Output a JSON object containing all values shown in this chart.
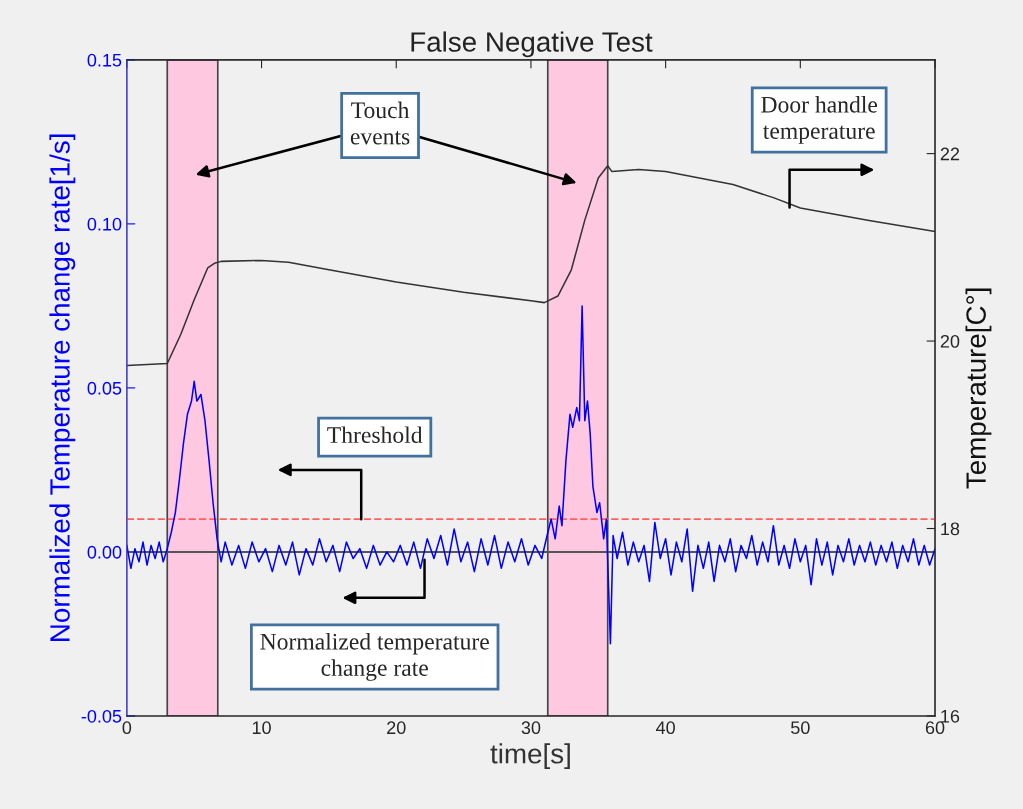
{
  "chart_data": {
    "type": "line",
    "title": "False Negative Test",
    "xlabel": "time[s]",
    "ylabel": "Normalized Temperature change rate[1/s]",
    "y2label": "Temperature[C°]",
    "xlim": [
      0,
      60
    ],
    "xticks": [
      0,
      10,
      20,
      30,
      40,
      50,
      60
    ],
    "ylim": [
      -0.05,
      0.15
    ],
    "yticks": [
      {
        "value": -0.05,
        "label": "-0.05"
      },
      {
        "value": 0,
        "label": "0.00"
      },
      {
        "value": 0.05,
        "label": "0.05"
      },
      {
        "value": 0.1,
        "label": "0.10"
      },
      {
        "value": 0.15,
        "label": "0.15"
      }
    ],
    "y2lim": [
      16,
      23
    ],
    "y2ticks": [
      16,
      18,
      20,
      22
    ],
    "series": [
      {
        "color": "#0000ff",
        "axis": "y",
        "x": [
          0,
          0.3,
          0.6,
          0.9,
          1.2,
          1.5,
          1.8,
          2.1,
          2.4,
          2.7,
          3.0,
          3.3,
          3.6,
          3.9,
          4.2,
          4.5,
          4.8,
          5.0,
          5.2,
          5.5,
          5.8,
          6.1,
          6.4,
          6.7,
          7.0,
          7.3,
          7.8,
          8.3,
          8.8,
          9.3,
          9.8,
          10.3,
          10.8,
          11.3,
          11.8,
          12.3,
          12.8,
          13.3,
          13.8,
          14.3,
          14.8,
          15.3,
          15.8,
          16.3,
          16.8,
          17.3,
          17.8,
          18.3,
          18.8,
          19.3,
          19.8,
          20.3,
          20.8,
          21.3,
          21.8,
          22.3,
          22.8,
          23.3,
          23.8,
          24.3,
          24.8,
          25.3,
          25.8,
          26.3,
          26.8,
          27.3,
          27.8,
          28.3,
          28.8,
          29.3,
          29.8,
          30.3,
          30.8,
          31.2,
          31.5,
          31.8,
          32.1,
          32.3,
          32.6,
          32.9,
          33.1,
          33.4,
          33.6,
          33.8,
          34.0,
          34.2,
          34.4,
          34.6,
          34.9,
          35.1,
          35.4,
          35.6,
          35.9,
          36.1,
          36.4,
          36.8,
          37.2,
          37.6,
          38.0,
          38.4,
          38.8,
          39.2,
          39.6,
          40.0,
          40.4,
          40.8,
          41.2,
          41.6,
          42.0,
          42.4,
          42.8,
          43.2,
          43.6,
          44.0,
          44.4,
          44.8,
          45.2,
          45.6,
          46.0,
          46.4,
          46.8,
          47.2,
          47.6,
          48.0,
          48.4,
          48.8,
          49.2,
          49.6,
          50.0,
          50.4,
          50.8,
          51.2,
          51.6,
          52.0,
          52.4,
          52.8,
          53.2,
          53.6,
          54.0,
          54.4,
          54.8,
          55.2,
          55.6,
          56.0,
          56.4,
          56.8,
          57.2,
          57.6,
          58.0,
          58.4,
          58.8,
          59.2,
          59.6,
          60.0
        ],
        "values": [
          0.002,
          -0.005,
          0.001,
          -0.003,
          0.003,
          -0.004,
          0.002,
          -0.002,
          0.003,
          -0.003,
          0.001,
          0.006,
          0.012,
          0.022,
          0.033,
          0.042,
          0.046,
          0.052,
          0.046,
          0.048,
          0.04,
          0.028,
          0.015,
          0.004,
          -0.003,
          0.003,
          -0.004,
          0.002,
          -0.005,
          0.003,
          -0.003,
          0.001,
          -0.006,
          0.002,
          -0.004,
          0.003,
          -0.007,
          0.001,
          -0.004,
          0.004,
          -0.003,
          0.002,
          -0.006,
          0.003,
          -0.002,
          0.001,
          -0.005,
          0.002,
          -0.004,
          0.0,
          -0.003,
          0.002,
          -0.004,
          0.003,
          -0.005,
          0.004,
          -0.002,
          0.005,
          -0.004,
          0.007,
          -0.003,
          0.003,
          -0.006,
          0.004,
          -0.004,
          0.005,
          -0.005,
          0.003,
          -0.003,
          0.004,
          -0.004,
          0.002,
          -0.002,
          0.005,
          0.01,
          0.004,
          0.014,
          0.008,
          0.028,
          0.042,
          0.038,
          0.044,
          0.04,
          0.075,
          0.04,
          0.046,
          0.036,
          0.02,
          0.012,
          0.015,
          0.004,
          0.01,
          -0.028,
          0.005,
          -0.002,
          0.006,
          -0.004,
          0.003,
          -0.003,
          0.002,
          -0.009,
          0.009,
          -0.002,
          0.004,
          -0.007,
          0.003,
          -0.003,
          0.007,
          -0.012,
          0.002,
          -0.005,
          0.003,
          -0.009,
          0.002,
          -0.003,
          0.004,
          -0.006,
          0.002,
          -0.002,
          0.005,
          -0.004,
          0.003,
          -0.003,
          0.008,
          -0.004,
          0.002,
          -0.005,
          0.004,
          -0.003,
          0.002,
          -0.01,
          0.004,
          -0.004,
          0.003,
          -0.007,
          0.002,
          -0.003,
          0.004,
          -0.004,
          0.002,
          -0.003,
          0.003,
          -0.004,
          0.002,
          -0.003,
          0.003,
          -0.005,
          0.002,
          -0.003,
          0.004,
          -0.004,
          0.002,
          -0.004,
          0.001
        ]
      },
      {
        "color": "#333333",
        "axis": "y2",
        "x": [
          0,
          3,
          4,
          5,
          6,
          6.5,
          7,
          10,
          12,
          15,
          20,
          25,
          30,
          31,
          32,
          33,
          34,
          35,
          35.7,
          36,
          38,
          40,
          45,
          48,
          50,
          55,
          60
        ],
        "values": [
          19.74,
          19.76,
          20.07,
          20.44,
          20.78,
          20.83,
          20.85,
          20.86,
          20.84,
          20.76,
          20.63,
          20.52,
          20.43,
          20.41,
          20.48,
          20.76,
          21.29,
          21.74,
          21.87,
          21.81,
          21.83,
          21.81,
          21.67,
          21.53,
          21.42,
          21.29,
          21.17
        ]
      }
    ],
    "ref_lines": [
      {
        "axis": "y",
        "value": 0.01,
        "color": "#ff6060",
        "line_style": "dashed"
      },
      {
        "axis": "y",
        "value": 0,
        "color": "#555555",
        "line_style": "solid"
      }
    ],
    "bands": [
      {
        "axis": "x",
        "from": 3,
        "to": 6.75,
        "color": "#ffc8e1"
      },
      {
        "axis": "x",
        "from": 31.25,
        "to": 35.7,
        "color": "#ffc8e1"
      }
    ],
    "annotations": [
      "Touch\nevents",
      "Door handle\ntemperature",
      "Threshold",
      "Normalized temperature\nchange rate"
    ]
  }
}
